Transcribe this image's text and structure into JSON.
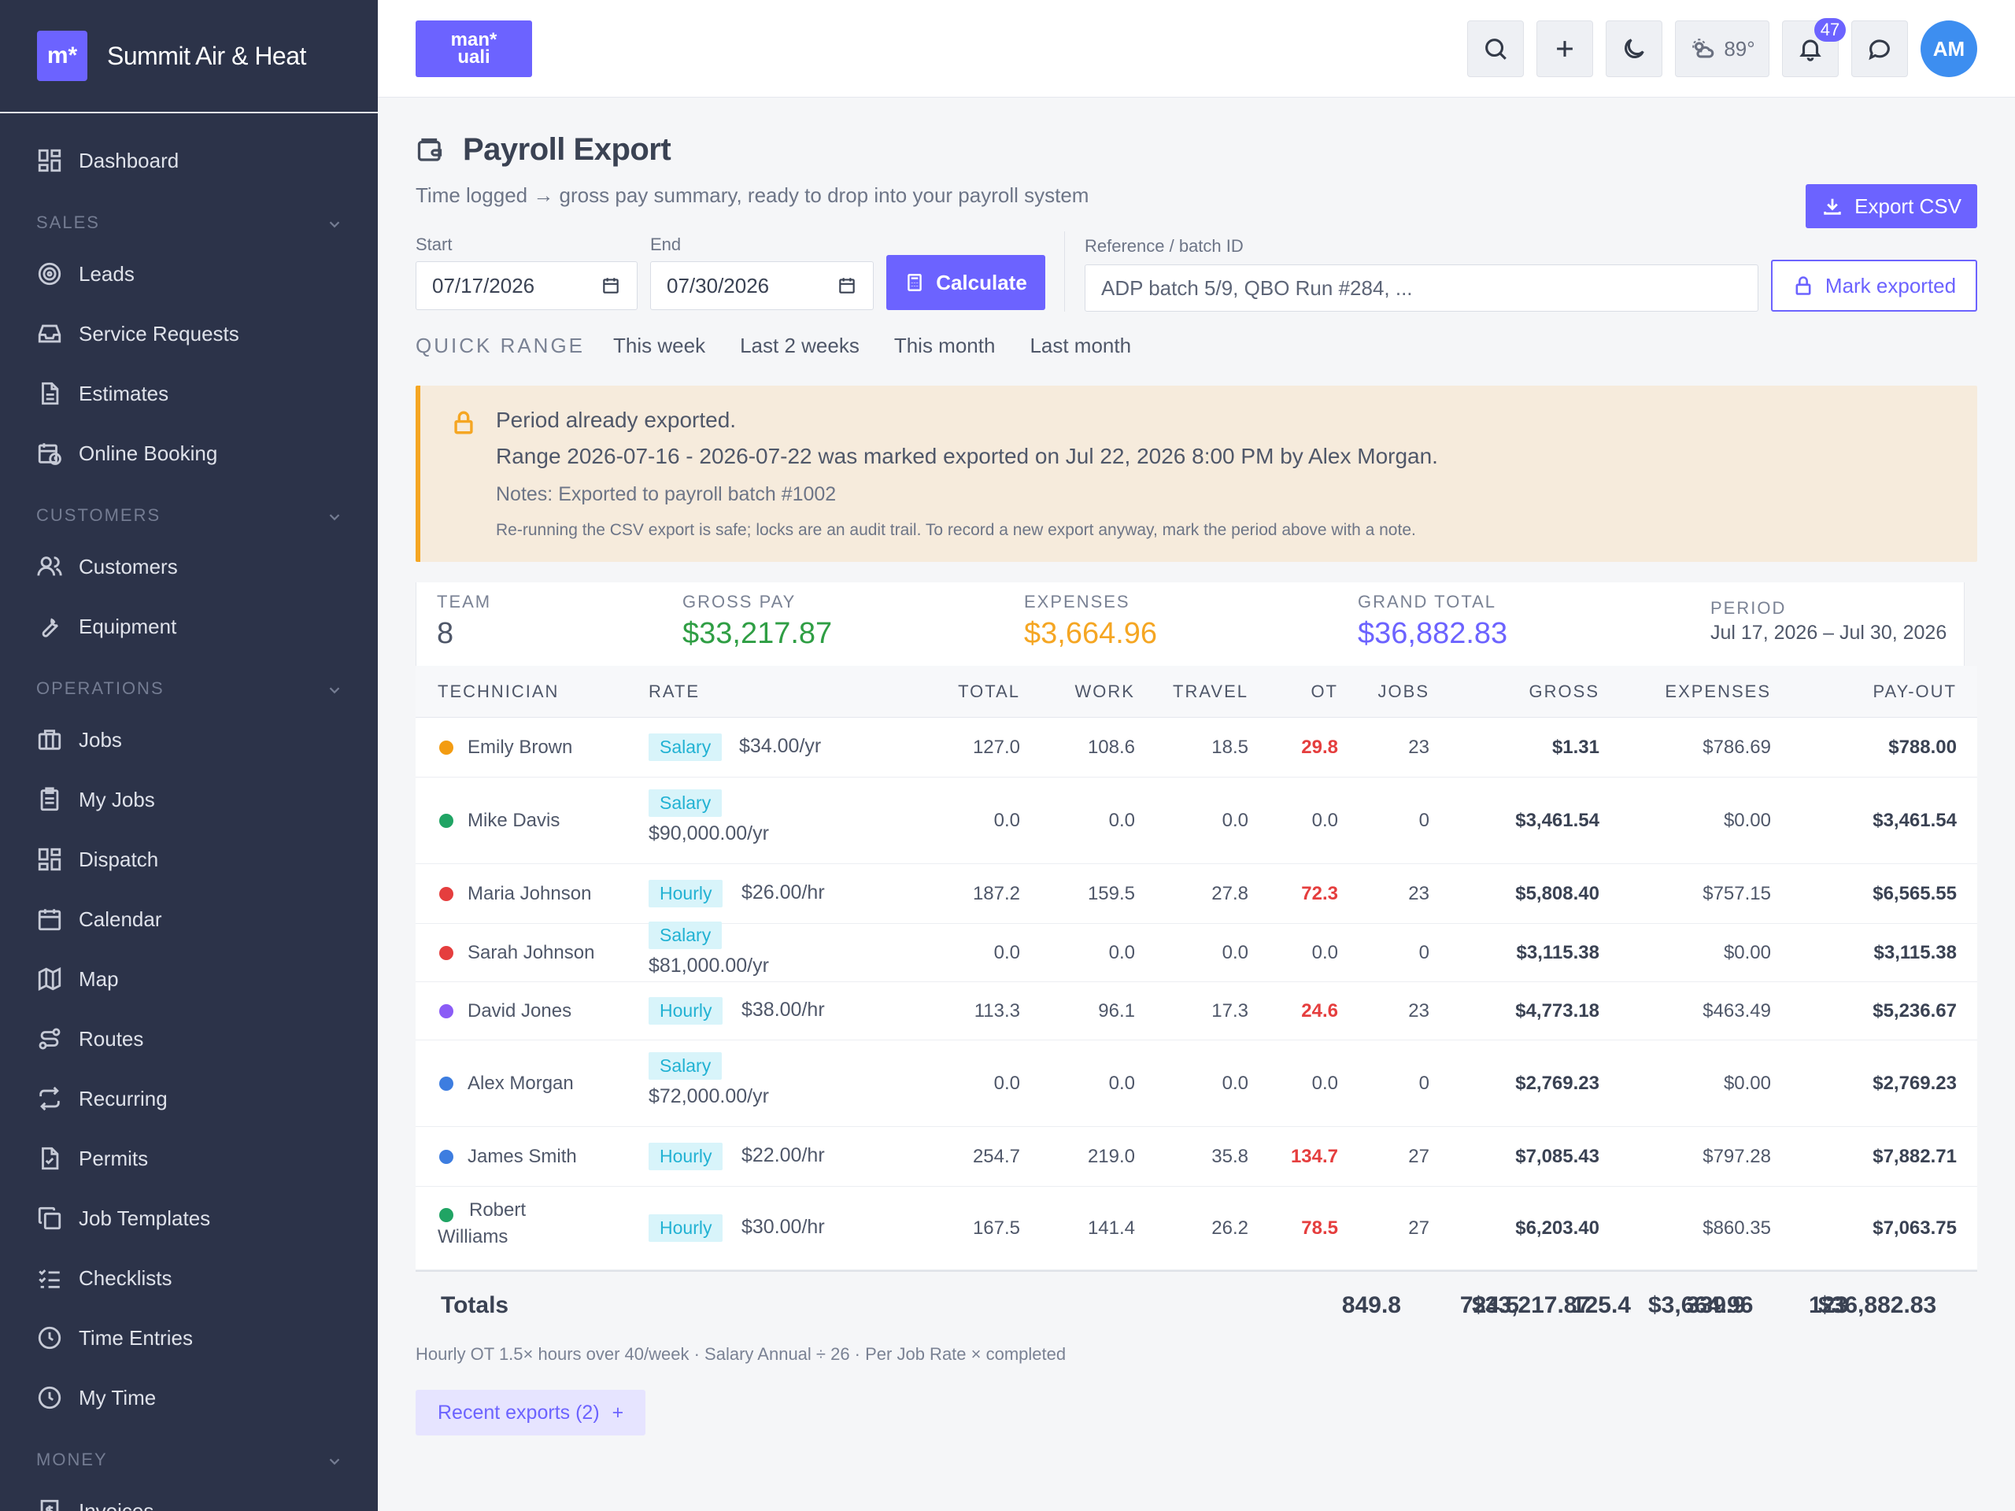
{
  "brand": {
    "logo_text": "m*",
    "name": "Summit Air & Heat"
  },
  "sidebar": {
    "items": [
      {
        "type": "item",
        "label": "Dashboard",
        "icon": "grid-icon"
      },
      {
        "type": "section",
        "label": "SALES"
      },
      {
        "type": "item",
        "label": "Leads",
        "icon": "target-icon"
      },
      {
        "type": "item",
        "label": "Service Requests",
        "icon": "inbox-icon"
      },
      {
        "type": "item",
        "label": "Estimates",
        "icon": "document-icon"
      },
      {
        "type": "item",
        "label": "Online Booking",
        "icon": "calendar-clock-icon"
      },
      {
        "type": "section",
        "label": "CUSTOMERS"
      },
      {
        "type": "item",
        "label": "Customers",
        "icon": "users-icon"
      },
      {
        "type": "item",
        "label": "Equipment",
        "icon": "wrench-icon"
      },
      {
        "type": "section",
        "label": "OPERATIONS"
      },
      {
        "type": "item",
        "label": "Jobs",
        "icon": "briefcase-icon"
      },
      {
        "type": "item",
        "label": "My Jobs",
        "icon": "clipboard-icon"
      },
      {
        "type": "item",
        "label": "Dispatch",
        "icon": "grid-icon"
      },
      {
        "type": "item",
        "label": "Calendar",
        "icon": "calendar-icon"
      },
      {
        "type": "item",
        "label": "Map",
        "icon": "map-icon"
      },
      {
        "type": "item",
        "label": "Routes",
        "icon": "route-icon"
      },
      {
        "type": "item",
        "label": "Recurring",
        "icon": "repeat-icon"
      },
      {
        "type": "item",
        "label": "Permits",
        "icon": "file-check-icon"
      },
      {
        "type": "item",
        "label": "Job Templates",
        "icon": "copy-icon"
      },
      {
        "type": "item",
        "label": "Checklists",
        "icon": "checklist-icon"
      },
      {
        "type": "item",
        "label": "Time Entries",
        "icon": "clock-icon"
      },
      {
        "type": "item",
        "label": "My Time",
        "icon": "clock-icon"
      },
      {
        "type": "section",
        "label": "MONEY"
      },
      {
        "type": "item",
        "label": "Invoices",
        "icon": "invoice-icon"
      }
    ]
  },
  "topbar": {
    "logo_text_top": "man*",
    "logo_text_bottom": "uali",
    "weather": "89°",
    "notifications": "47",
    "avatar": "AM"
  },
  "page": {
    "title": "Payroll Export",
    "subtitle": "Time logged → gross pay summary, ready to drop into your payroll system",
    "export_csv": "Export CSV"
  },
  "form": {
    "start_label": "Start",
    "start_value": "07/17/2026",
    "end_label": "End",
    "end_value": "07/30/2026",
    "calculate": "Calculate",
    "ref_label": "Reference / batch ID",
    "ref_placeholder": "ADP batch 5/9, QBO Run #284, ...",
    "mark_exported": "Mark exported",
    "quick_label": "QUICK RANGE",
    "quick_links": [
      "This week",
      "Last 2 weeks",
      "This month",
      "Last month"
    ]
  },
  "alert": {
    "line1": "Period already exported.",
    "line2": "Range 2026-07-16 - 2026-07-22 was marked exported on Jul 22, 2026 8:00 PM by Alex Morgan.",
    "line3": "Notes: Exported to payroll batch #1002",
    "line4": "Re-running the CSV export is safe; locks are an audit trail. To record a new export anyway, mark the period above with a note."
  },
  "summary": {
    "team_label": "TEAM",
    "team_value": "8",
    "gross_label": "GROSS PAY",
    "gross_value": "$33,217.87",
    "expenses_label": "EXPENSES",
    "expenses_value": "$3,664.96",
    "grand_label": "GRAND TOTAL",
    "grand_value": "$36,882.83",
    "period_label": "PERIOD",
    "period_value": "Jul 17, 2026 – Jul 30, 2026",
    "colors": {
      "gross": "#2f9e44",
      "expenses": "#f5a623",
      "grand": "#6c63ff"
    }
  },
  "table": {
    "headers": [
      "TECHNICIAN",
      "RATE",
      "TOTAL",
      "WORK",
      "TRAVEL",
      "OT",
      "JOBS",
      "GROSS",
      "EXPENSES",
      "PAY-OUT"
    ],
    "rows": [
      {
        "name": "Emily Brown",
        "dot": "#f39c12",
        "tag": "Salary",
        "rate": "$34.00/yr",
        "total": "127.0",
        "work": "108.6",
        "travel": "18.5",
        "ot": "29.8",
        "jobs": "23",
        "gross": "$1.31",
        "expenses": "$786.69",
        "payout": "$788.00"
      },
      {
        "name": "Mike Davis",
        "dot": "#20a464",
        "tag": "Salary",
        "rate": "$90,000.00/yr",
        "total": "0.0",
        "work": "0.0",
        "travel": "0.0",
        "ot": "0.0",
        "jobs": "0",
        "gross": "$3,461.54",
        "expenses": "$0.00",
        "payout": "$3,461.54"
      },
      {
        "name": "Maria Johnson",
        "dot": "#e53e3e",
        "tag": "Hourly",
        "rate": "$26.00/hr",
        "total": "187.2",
        "work": "159.5",
        "travel": "27.8",
        "ot": "72.3",
        "jobs": "23",
        "gross": "$5,808.40",
        "expenses": "$757.15",
        "payout": "$6,565.55"
      },
      {
        "name": "Sarah Johnson",
        "dot": "#e53e3e",
        "tag": "Salary",
        "rate": "$81,000.00/yr",
        "total": "0.0",
        "work": "0.0",
        "travel": "0.0",
        "ot": "0.0",
        "jobs": "0",
        "gross": "$3,115.38",
        "expenses": "$0.00",
        "payout": "$3,115.38"
      },
      {
        "name": "David Jones",
        "dot": "#8b5cf6",
        "tag": "Hourly",
        "rate": "$38.00/hr",
        "total": "113.3",
        "work": "96.1",
        "travel": "17.3",
        "ot": "24.6",
        "jobs": "23",
        "gross": "$4,773.18",
        "expenses": "$463.49",
        "payout": "$5,236.67"
      },
      {
        "name": "Alex Morgan",
        "dot": "#3d7de0",
        "tag": "Salary",
        "rate": "$72,000.00/yr",
        "total": "0.0",
        "work": "0.0",
        "travel": "0.0",
        "ot": "0.0",
        "jobs": "0",
        "gross": "$2,769.23",
        "expenses": "$0.00",
        "payout": "$2,769.23"
      },
      {
        "name": "James Smith",
        "dot": "#3d7de0",
        "tag": "Hourly",
        "rate": "$22.00/hr",
        "total": "254.7",
        "work": "219.0",
        "travel": "35.8",
        "ot": "134.7",
        "jobs": "27",
        "gross": "$7,085.43",
        "expenses": "$797.28",
        "payout": "$7,882.71"
      },
      {
        "name": "Robert Williams",
        "dot": "#20a464",
        "tag": "Hourly",
        "rate": "$30.00/hr",
        "total": "167.5",
        "work": "141.4",
        "travel": "26.2",
        "ot": "78.5",
        "jobs": "27",
        "gross": "$6,203.40",
        "expenses": "$860.35",
        "payout": "$7,063.75"
      }
    ],
    "totals": {
      "label": "Totals",
      "total": "849.8",
      "work": "724.5",
      "travel": "125.4",
      "ot": "339.9",
      "jobs": "123",
      "gross": "$33,217.87",
      "expenses": "$3,664.96",
      "payout": "$36,882.83"
    }
  },
  "footnote": "Hourly OT 1.5× hours over 40/week · Salary Annual ÷ 26 · Per Job Rate × completed",
  "recent_exports": "Recent exports (2)",
  "recent_plus": "+"
}
